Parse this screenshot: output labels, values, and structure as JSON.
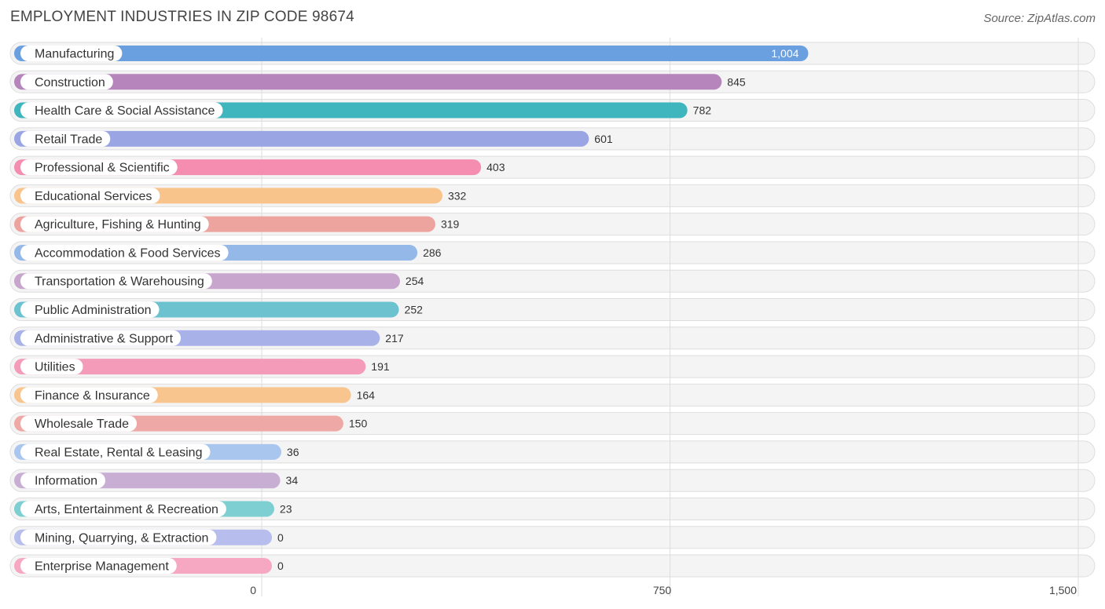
{
  "title": "EMPLOYMENT INDUSTRIES IN ZIP CODE 98674",
  "source": "Source: ZipAtlas.com",
  "chart_data": {
    "type": "bar",
    "orientation": "horizontal",
    "title": "EMPLOYMENT INDUSTRIES IN ZIP CODE 98674",
    "xlim": [
      0,
      1500
    ],
    "ticks": [
      0,
      750,
      1500
    ],
    "tick_labels": [
      "0",
      "750",
      "1,500"
    ],
    "grid": true,
    "categories": [
      "Manufacturing",
      "Construction",
      "Health Care & Social Assistance",
      "Retail Trade",
      "Professional & Scientific",
      "Educational Services",
      "Agriculture, Fishing & Hunting",
      "Accommodation & Food Services",
      "Transportation & Warehousing",
      "Public Administration",
      "Administrative & Support",
      "Utilities",
      "Finance & Insurance",
      "Wholesale Trade",
      "Real Estate, Rental & Leasing",
      "Information",
      "Arts, Entertainment & Recreation",
      "Mining, Quarrying, & Extraction",
      "Enterprise Management"
    ],
    "values": [
      1004,
      845,
      782,
      601,
      403,
      332,
      319,
      286,
      254,
      252,
      217,
      191,
      164,
      150,
      36,
      34,
      23,
      0,
      0
    ],
    "value_labels": [
      "1,004",
      "845",
      "782",
      "601",
      "403",
      "332",
      "319",
      "286",
      "254",
      "252",
      "217",
      "191",
      "164",
      "150",
      "36",
      "34",
      "23",
      "0",
      "0"
    ],
    "colors": [
      "#6a9fe0",
      "#b585bb",
      "#3fb5bd",
      "#99a6e3",
      "#f48daf",
      "#f9c38c",
      "#eda49f",
      "#94b9e8",
      "#c8a5cc",
      "#6cc2cf",
      "#a9b2e8",
      "#f59bba",
      "#f8c58e",
      "#eea8a5",
      "#a9c6ee",
      "#c8aed3",
      "#7ecfd1",
      "#b7bdec",
      "#f6a8c3"
    ]
  }
}
